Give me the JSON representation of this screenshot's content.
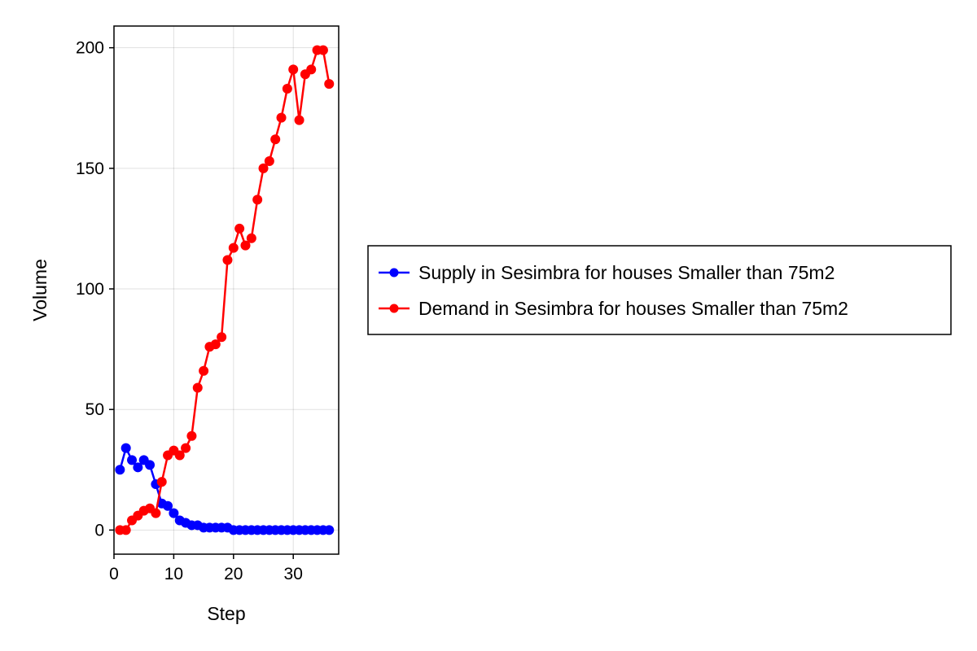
{
  "chart_data": {
    "type": "line",
    "title": "",
    "xlabel": "Step",
    "ylabel": "Volume",
    "xlim": [
      0,
      37.6
    ],
    "ylim": [
      -10,
      209
    ],
    "x_ticks": [
      0,
      10,
      20,
      30
    ],
    "y_ticks": [
      0,
      50,
      100,
      150,
      200
    ],
    "grid": true,
    "legend_position": "right",
    "series": [
      {
        "name": "Supply in Sesimbra for houses Smaller than 75m2",
        "color": "#0000ff",
        "x": [
          1,
          2,
          3,
          4,
          5,
          6,
          7,
          8,
          9,
          10,
          11,
          12,
          13,
          14,
          15,
          16,
          17,
          18,
          19,
          20,
          21,
          22,
          23,
          24,
          25,
          26,
          27,
          28,
          29,
          30,
          31,
          32,
          33,
          34,
          35,
          36
        ],
        "y": [
          25,
          34,
          29,
          26,
          29,
          27,
          19,
          11,
          10,
          7,
          4,
          3,
          2,
          2,
          1,
          1,
          1,
          1,
          1,
          0,
          0,
          0,
          0,
          0,
          0,
          0,
          0,
          0,
          0,
          0,
          0,
          0,
          0,
          0,
          0,
          0
        ]
      },
      {
        "name": "Demand in Sesimbra for houses Smaller than 75m2",
        "color": "#ff0000",
        "x": [
          1,
          2,
          3,
          4,
          5,
          6,
          7,
          8,
          9,
          10,
          11,
          12,
          13,
          14,
          15,
          16,
          17,
          18,
          19,
          20,
          21,
          22,
          23,
          24,
          25,
          26,
          27,
          28,
          29,
          30,
          31,
          32,
          33,
          34,
          35,
          36
        ],
        "y": [
          0,
          0,
          4,
          6,
          8,
          9,
          7,
          20,
          31,
          33,
          31,
          34,
          39,
          59,
          66,
          76,
          77,
          80,
          112,
          117,
          125,
          118,
          121,
          137,
          150,
          153,
          162,
          171,
          183,
          191,
          170,
          189,
          191,
          199,
          199,
          185
        ]
      }
    ]
  }
}
